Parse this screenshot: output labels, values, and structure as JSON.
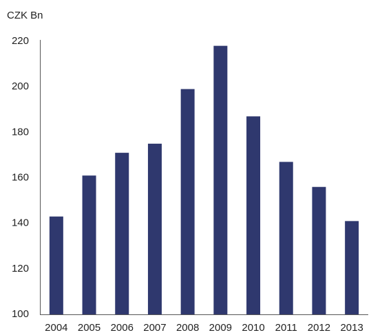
{
  "chart_data": {
    "type": "bar",
    "y_label": "CZK Bn",
    "categories": [
      "2004",
      "2005",
      "2006",
      "2007",
      "2008",
      "2009",
      "2010",
      "2011",
      "2012",
      "2013"
    ],
    "values": [
      143,
      161,
      171,
      175,
      199,
      218,
      187,
      167,
      156,
      141
    ],
    "color": "#2f386e",
    "ylim": [
      100,
      220
    ],
    "yticks": [
      100,
      120,
      140,
      160,
      180,
      200,
      220
    ],
    "grid": false
  }
}
